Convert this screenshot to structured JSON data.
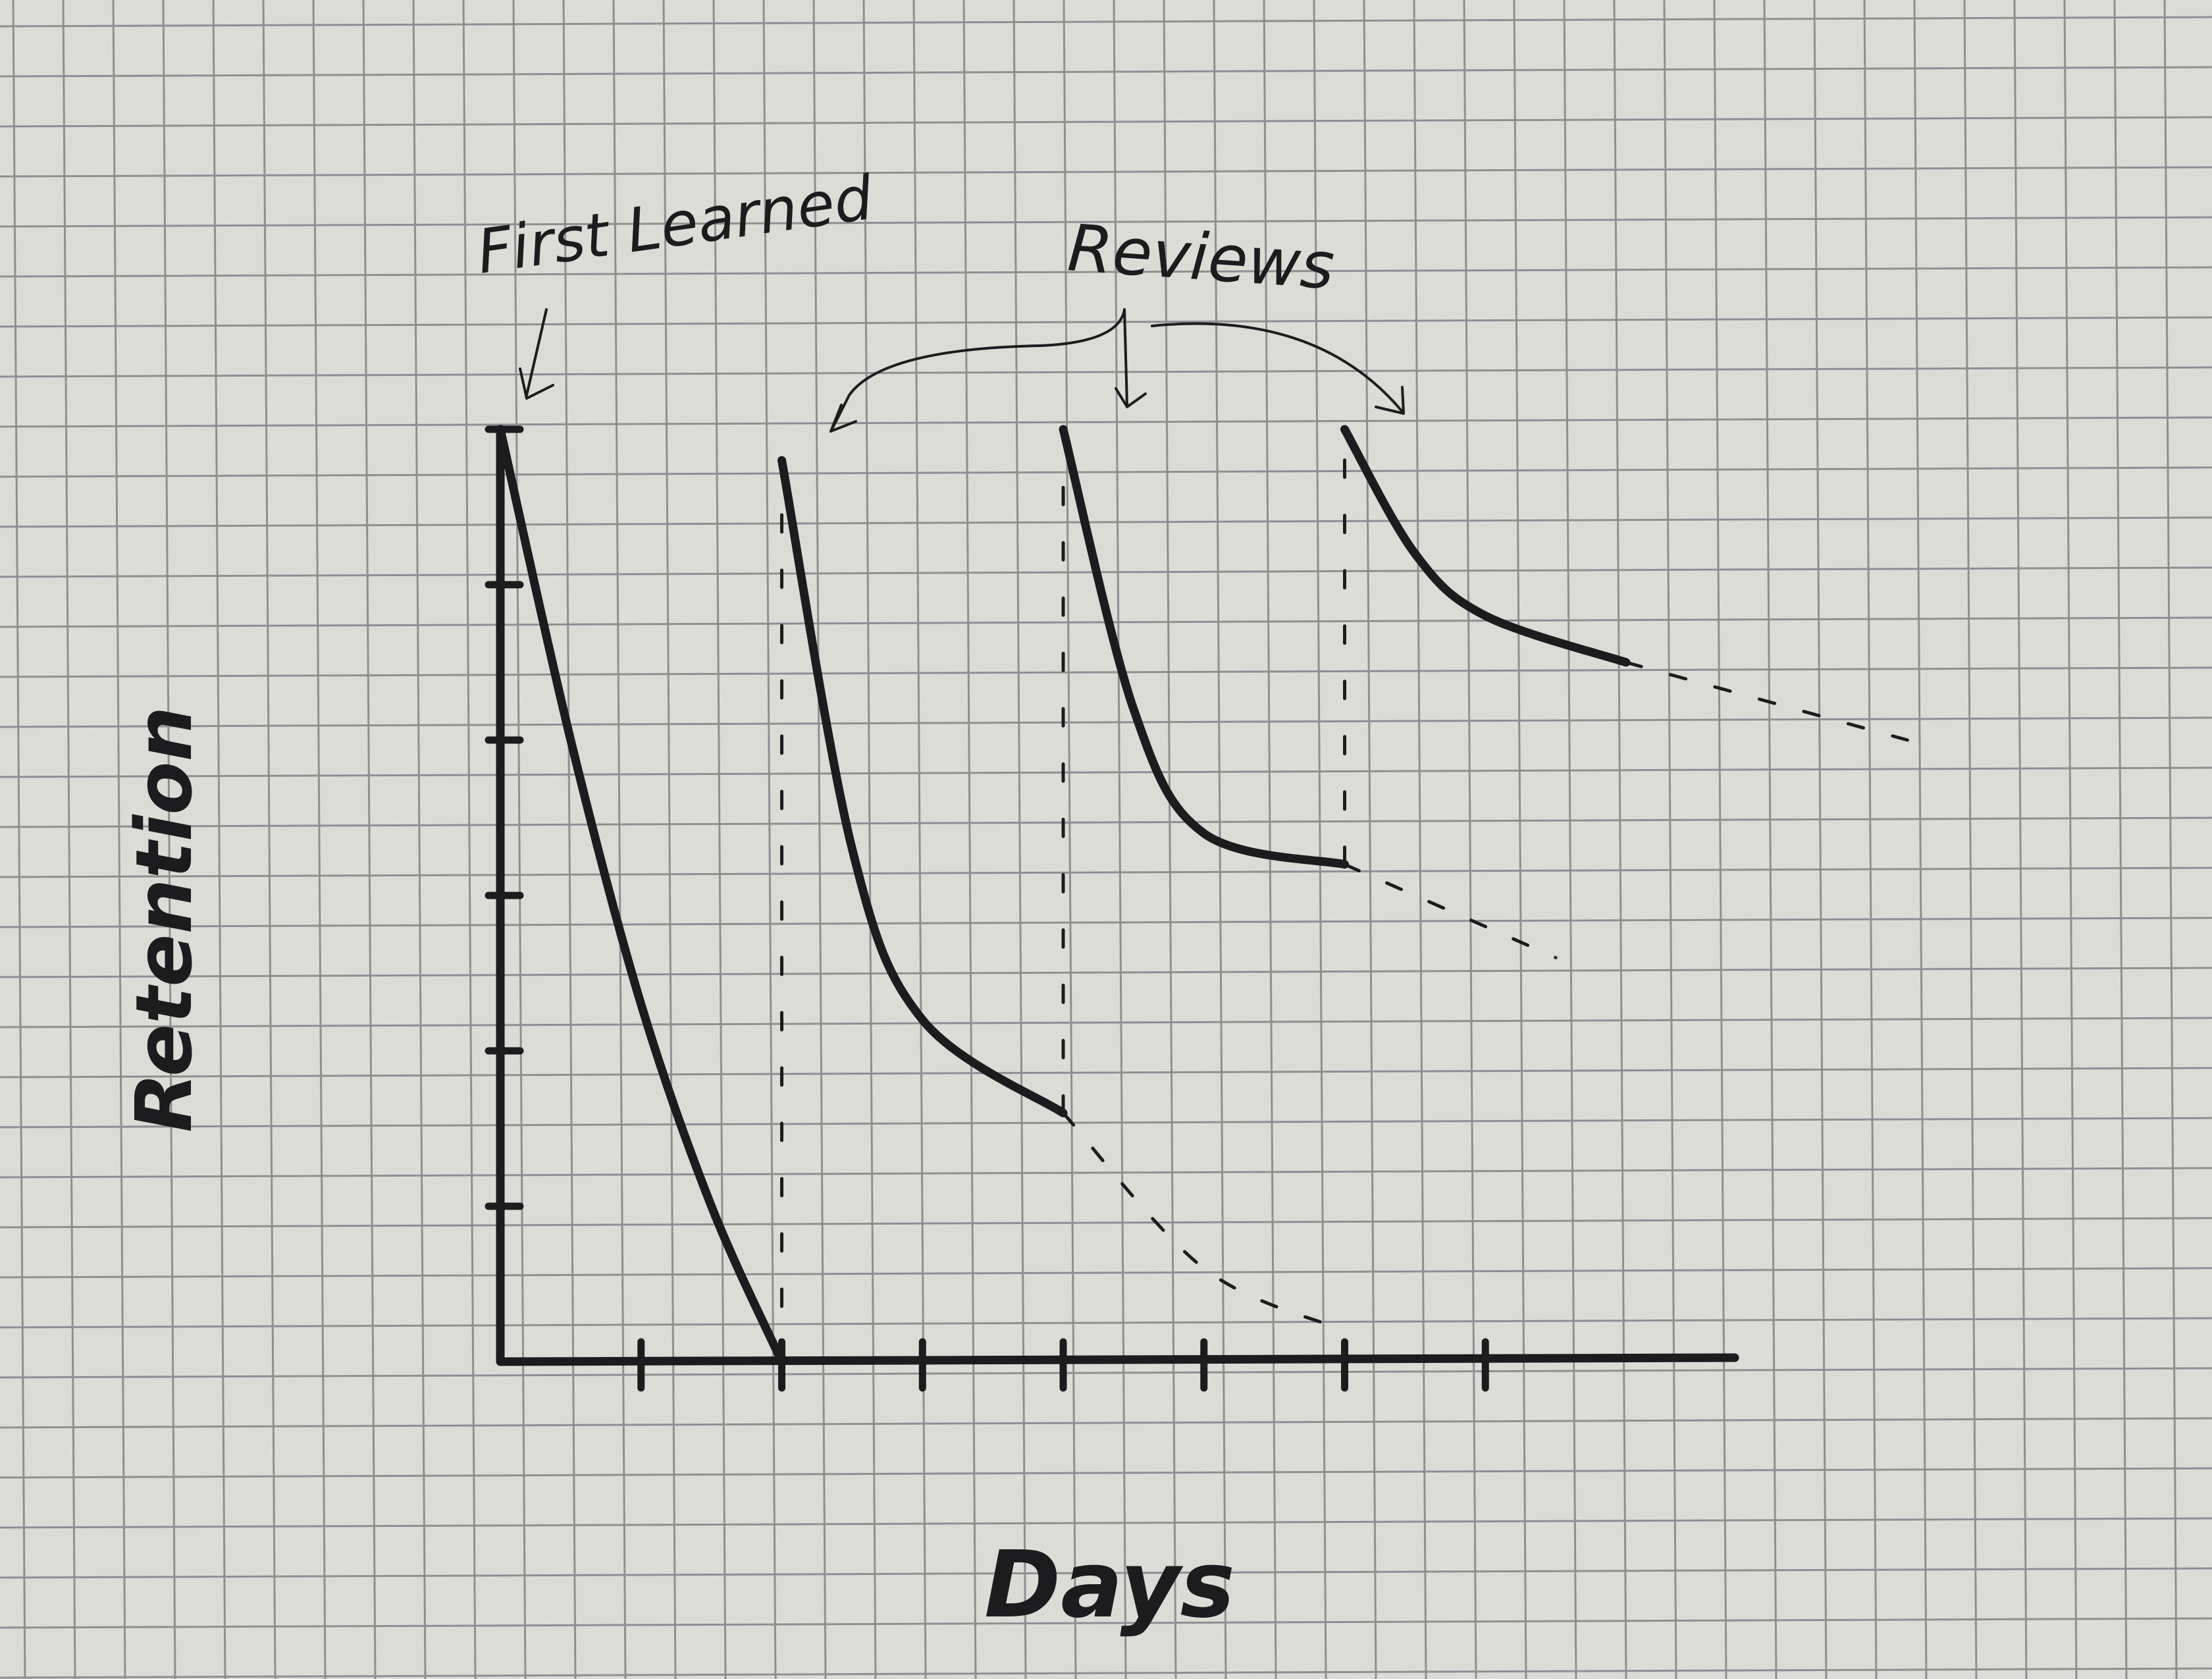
{
  "colors": {
    "paper": "#dcdcd6",
    "grid": "#8d8f92",
    "ink": "#1c1c1f"
  },
  "chart_data": {
    "type": "line",
    "title": "",
    "xlabel": "Days",
    "ylabel": "Retention",
    "xlim": [
      0,
      8
    ],
    "ylim": [
      0,
      6
    ],
    "x_ticks": [
      1,
      2,
      3,
      4,
      5,
      6,
      7
    ],
    "y_ticks": [
      1,
      2,
      3,
      4,
      5,
      6
    ],
    "tick_labels_printed": false,
    "grid": true,
    "legend": "none",
    "annotations": [
      "First Learned",
      "Reviews"
    ],
    "series": [
      {
        "kind": "solid",
        "points": [
          [
            0,
            6
          ],
          [
            0.5,
            4
          ],
          [
            1,
            2.3
          ],
          [
            1.5,
            1
          ],
          [
            2,
            0
          ]
        ]
      },
      {
        "kind": "solid",
        "points": [
          [
            2,
            5.8
          ],
          [
            2.5,
            3.3
          ],
          [
            3,
            2.2
          ],
          [
            4,
            1.6
          ]
        ]
      },
      {
        "kind": "solid",
        "points": [
          [
            4,
            6
          ],
          [
            4.5,
            4.2
          ],
          [
            5,
            3.4
          ],
          [
            6,
            3.2
          ]
        ]
      },
      {
        "kind": "solid",
        "points": [
          [
            6,
            6
          ],
          [
            6.5,
            5.2
          ],
          [
            7,
            4.8
          ],
          [
            8,
            4.5
          ]
        ]
      },
      {
        "kind": "dashed",
        "points": [
          [
            4,
            1.6
          ],
          [
            5,
            0.6
          ],
          [
            6,
            0.2
          ]
        ]
      },
      {
        "kind": "dashed",
        "points": [
          [
            6,
            3.2
          ],
          [
            7.5,
            2.6
          ]
        ]
      },
      {
        "kind": "dashed",
        "points": [
          [
            8,
            4.5
          ],
          [
            10,
            4
          ]
        ]
      },
      {
        "kind": "dashed-vertical",
        "points": [
          [
            2,
            0
          ],
          [
            2,
            5.8
          ]
        ]
      },
      {
        "kind": "dashed-vertical",
        "points": [
          [
            4,
            1.6
          ],
          [
            4,
            5.7
          ]
        ]
      },
      {
        "kind": "dashed-vertical",
        "points": [
          [
            6,
            3.2
          ],
          [
            6,
            5.9
          ]
        ]
      }
    ]
  }
}
